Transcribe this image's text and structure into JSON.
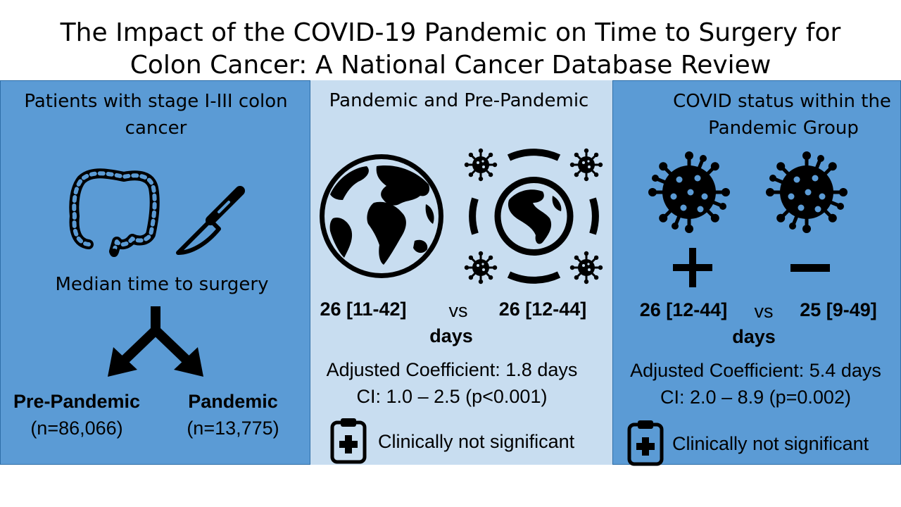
{
  "title": {
    "line1": "The Impact of the COVID-19 Pandemic on Time to Surgery for",
    "line2": "Colon Cancer: A National Cancer Database Review"
  },
  "left_panel": {
    "heading_line1": "Patients with stage I-III colon",
    "heading_line2": "cancer",
    "subheading": "Median time to surgery",
    "group1_name": "Pre-Pandemic",
    "group1_n": "(n=86,066)",
    "group2_name": "Pandemic",
    "group2_n": "(n=13,775)",
    "icons": [
      "colon-icon",
      "scalpel-icon",
      "split-arrow-icon"
    ]
  },
  "middle_panel": {
    "heading": "Pandemic and Pre-Pandemic",
    "value_left": "26 [11-42]",
    "vs": "vs",
    "value_right": "26 [12-44]",
    "unit": "days",
    "coef": "Adjusted Coefficient: 1.8 days",
    "ci": "CI: 1.0 – 2.5 (p<0.001)",
    "note": "Clinically not significant",
    "icons": [
      "globe-icon",
      "pandemic-globe-icon",
      "clipboard-icon"
    ]
  },
  "right_panel": {
    "heading_line1": "COVID status within the",
    "heading_line2": "Pandemic Group",
    "positive_symbol": "+",
    "negative_symbol": "−",
    "value_left": "26 [12-44]",
    "vs": "vs",
    "value_right": "25 [9-49]",
    "unit": "days",
    "coef": "Adjusted Coefficient: 5.4 days",
    "ci": "CI: 2.0 – 8.9 (p=0.002)",
    "note": "Clinically not significant",
    "icons": [
      "virus-icon",
      "virus-icon",
      "plus-icon",
      "minus-icon",
      "clipboard-icon"
    ]
  },
  "colors": {
    "panel_dark": "#5b9bd5",
    "panel_light": "#c8ddf0",
    "icon": "#000000"
  }
}
